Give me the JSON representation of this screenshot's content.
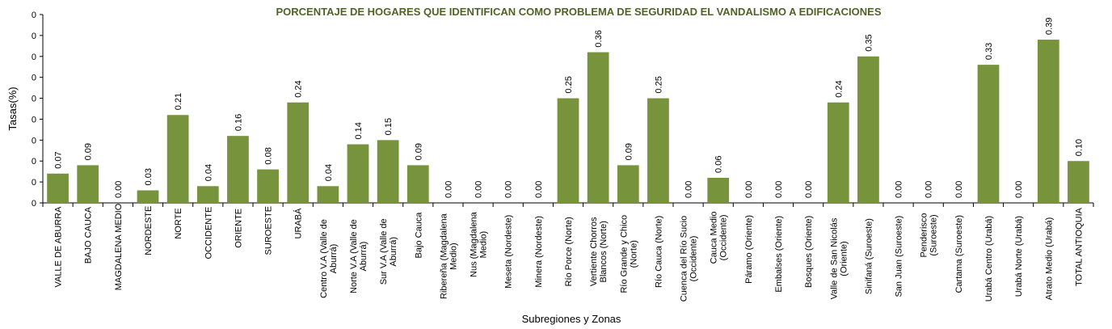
{
  "colors": {
    "bar": "#77933c",
    "title": "#4f6228",
    "axis": "#000000"
  },
  "chart_data": {
    "type": "bar",
    "title": "PORCENTAJE DE HOGARES QUE IDENTIFICAN COMO PROBLEMA DE SEGURIDAD EL VANDALISMO A EDIFICACIONES",
    "xlabel": "Subregiones y Zonas",
    "ylabel": "Tasas(%)",
    "ylim": [
      0,
      0.45
    ],
    "y_tick_labels": [
      "0",
      "0",
      "0",
      "0",
      "0",
      "0",
      "0",
      "0",
      "0",
      "0"
    ],
    "categories": [
      "VALLE DE ABURRA",
      "BAJO CAUCA",
      "MAGDALENA MEDIO",
      "NORDESTE",
      "NORTE",
      "OCCIDENTE",
      "ORIENTE",
      "SUROESTE",
      "URABÁ",
      "Centro V.A (Valle de Aburrá)",
      "Norte V.A (Valle de Aburrá)",
      "Sur V.A (Valle de Aburrá)",
      "Bajo Cauca",
      "Ribereña (Magdalena Medio)",
      "Nus (Magdalena Medio)",
      "Meseta (Nordeste)",
      "Minera (Nordeste)",
      "Río Porce (Norte)",
      "Vertiente Chorros Blancos (Norte)",
      "Río Grande y Chico (Norte)",
      "Río Cauca (Norte)",
      "Cuenca del Río Sucio (Occidente)",
      "Cauca Medio (Occidente)",
      "Páramo (Oriente)",
      "Embalses (Oriente)",
      "Bosques (Oriente)",
      "Valle de San Nicolás (Oriente)",
      "Sinifaná (Suroeste)",
      "San Juan (Suroeste)",
      "Penderisco (Suroeste)",
      "Cartama (Suroeste)",
      "Urabá Centro (Urabá)",
      "Urabá Norte (Urabá)",
      "Atrato Medio (Urabá)",
      "TOTAL ANTIOQUIA"
    ],
    "category_lines": [
      [
        "VALLE DE ABURRA"
      ],
      [
        "BAJO CAUCA"
      ],
      [
        "MAGDALENA MEDIO"
      ],
      [
        "NORDESTE"
      ],
      [
        "NORTE"
      ],
      [
        "OCCIDENTE"
      ],
      [
        "ORIENTE"
      ],
      [
        "SUROESTE"
      ],
      [
        "URABÁ"
      ],
      [
        "Centro V.A (Valle de",
        "Aburrá)"
      ],
      [
        "Norte V.A (Valle de",
        "Aburrá)"
      ],
      [
        "Sur V.A (Valle de",
        "Aburrá)"
      ],
      [
        "Bajo Cauca"
      ],
      [
        "Ribereña (Magdalena",
        "Medio)"
      ],
      [
        "Nus (Magdalena",
        "Medio)"
      ],
      [
        "Meseta (Nordeste)"
      ],
      [
        "Minera (Nordeste)"
      ],
      [
        "Río Porce (Norte)"
      ],
      [
        "Vertiente Chorros",
        "Blancos (Norte)"
      ],
      [
        "Río Grande y Chico",
        "(Norte)"
      ],
      [
        "Río Cauca (Norte)"
      ],
      [
        "Cuenca del Río Sucio",
        "(Occidente)"
      ],
      [
        "Cauca Medio",
        "(Occidente)"
      ],
      [
        "Páramo (Oriente)"
      ],
      [
        "Embalses (Oriente)"
      ],
      [
        "Bosques (Oriente)"
      ],
      [
        "Valle de San Nicolás",
        "(Oriente)"
      ],
      [
        "Sinifaná (Suroeste)"
      ],
      [
        "San Juan (Suroeste)"
      ],
      [
        "Penderisco",
        "(Suroeste)"
      ],
      [
        "Cartama (Suroeste)"
      ],
      [
        "Urabá Centro (Urabá)"
      ],
      [
        "Urabá Norte (Urabá)"
      ],
      [
        "Atrato Medio (Urabá)"
      ],
      [
        "TOTAL ANTIOQUIA"
      ]
    ],
    "values": [
      0.07,
      0.09,
      0.0,
      0.03,
      0.21,
      0.04,
      0.16,
      0.08,
      0.24,
      0.04,
      0.14,
      0.15,
      0.09,
      0.0,
      0.0,
      0.0,
      0.0,
      0.25,
      0.36,
      0.09,
      0.25,
      0.0,
      0.06,
      0.0,
      0.0,
      0.0,
      0.24,
      0.35,
      0.0,
      0.0,
      0.0,
      0.33,
      0.0,
      0.39,
      0.1
    ],
    "value_labels": [
      "0.07",
      "0.09",
      "0.00",
      "0.03",
      "0.21",
      "0.04",
      "0.16",
      "0.08",
      "0.24",
      "0.04",
      "0.14",
      "0.15",
      "0.09",
      "0.00",
      "0.00",
      "0.00",
      "0.00",
      "0.25",
      "0.36",
      "0.09",
      "0.25",
      "0.00",
      "0.06",
      "0.00",
      "0.00",
      "0.00",
      "0.24",
      "0.35",
      "0.00",
      "0.00",
      "0.00",
      "0.33",
      "0.00",
      "0.39",
      "0.10"
    ],
    "grid": false,
    "legend": "none"
  }
}
